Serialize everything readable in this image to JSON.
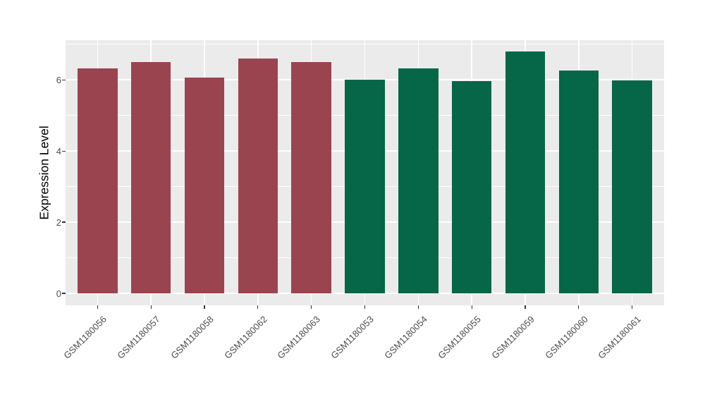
{
  "chart_data": {
    "type": "bar",
    "title": "",
    "xlabel": "",
    "ylabel": "Expression Level",
    "categories": [
      "GSM1180056",
      "GSM1180057",
      "GSM1180058",
      "GSM1180062",
      "GSM1180063",
      "GSM1180053",
      "GSM1180054",
      "GSM1180055",
      "GSM1180059",
      "GSM1180060",
      "GSM1180061"
    ],
    "values": [
      6.32,
      6.5,
      6.07,
      6.59,
      6.49,
      6.0,
      6.32,
      5.96,
      6.79,
      6.26,
      5.99
    ],
    "bar_colors": [
      "#9A4450",
      "#9A4450",
      "#9A4450",
      "#9A4450",
      "#9A4450",
      "#066748",
      "#066748",
      "#066748",
      "#066748",
      "#066748",
      "#066748"
    ],
    "ytick_labels": [
      "0",
      "2",
      "4",
      "6"
    ],
    "yticks": [
      0,
      2,
      4,
      6
    ],
    "yticks_minor": [
      1,
      3,
      5,
      7
    ],
    "ylim": [
      -0.34,
      7.11
    ],
    "grid": true,
    "legend_position": "none",
    "panel_bg": "#EBEBEB",
    "grid_major_color": "#FFFFFF",
    "grid_minor_color": "#FFFFFF"
  }
}
